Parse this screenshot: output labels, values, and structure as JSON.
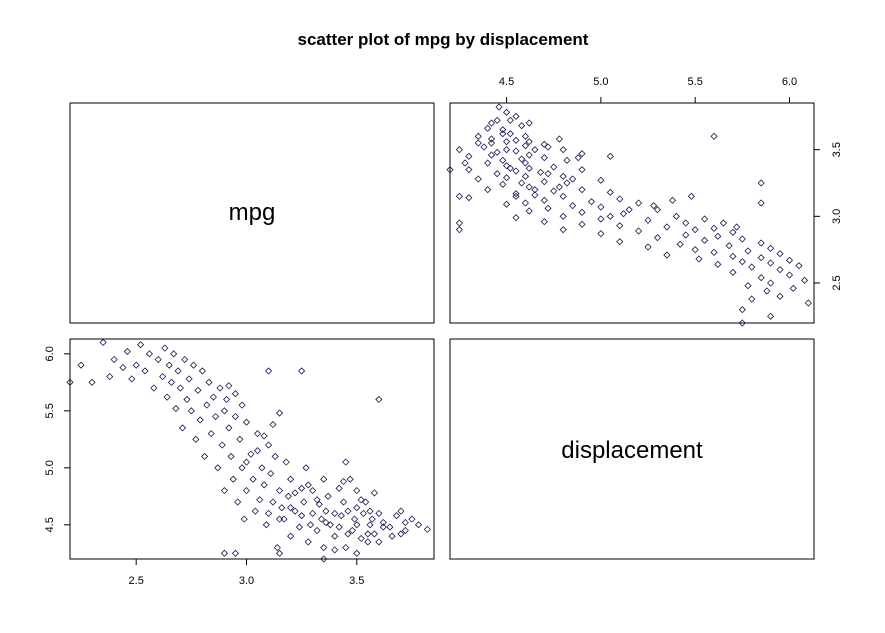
{
  "chart_data": {
    "type": "scatter",
    "title": "scatter plot of mpg by displacement",
    "variables": [
      "mpg",
      "displacement"
    ],
    "mpg_axis": {
      "range": [
        2.2,
        3.85
      ],
      "ticks": [
        2.5,
        3.0,
        3.5
      ],
      "tick_labels": [
        "2.5",
        "3.0",
        "3.5"
      ]
    },
    "displacement_axis": {
      "range": [
        4.2,
        6.13
      ],
      "ticks": [
        4.5,
        5.0,
        5.5,
        6.0
      ],
      "tick_labels": [
        "4.5",
        "5.0",
        "5.5",
        "6.0"
      ]
    },
    "point_color": "#1a1a50",
    "grid": false,
    "legend": "none",
    "points": [
      [
        3.82,
        4.46
      ],
      [
        3.78,
        4.5
      ],
      [
        3.75,
        4.55
      ],
      [
        3.72,
        4.45
      ],
      [
        3.7,
        4.62
      ],
      [
        3.68,
        4.58
      ],
      [
        3.66,
        4.4
      ],
      [
        3.65,
        4.48
      ],
      [
        3.62,
        4.52
      ],
      [
        3.6,
        4.6
      ],
      [
        3.6,
        4.35
      ],
      [
        3.58,
        4.78
      ],
      [
        3.57,
        4.55
      ],
      [
        3.56,
        4.5
      ],
      [
        3.55,
        4.42
      ],
      [
        3.54,
        4.7
      ],
      [
        3.53,
        4.6
      ],
      [
        3.52,
        4.38
      ],
      [
        3.5,
        4.5
      ],
      [
        3.5,
        4.8
      ],
      [
        3.5,
        4.65
      ],
      [
        3.49,
        4.55
      ],
      [
        3.48,
        4.45
      ],
      [
        3.47,
        4.9
      ],
      [
        3.46,
        4.62
      ],
      [
        3.45,
        4.3
      ],
      [
        3.45,
        5.05
      ],
      [
        3.44,
        4.7
      ],
      [
        3.43,
        4.58
      ],
      [
        3.42,
        4.48
      ],
      [
        3.42,
        4.82
      ],
      [
        3.4,
        4.6
      ],
      [
        3.4,
        4.4
      ],
      [
        3.38,
        4.5
      ],
      [
        3.37,
        4.75
      ],
      [
        3.36,
        4.62
      ],
      [
        3.35,
        4.9
      ],
      [
        3.35,
        4.3
      ],
      [
        3.34,
        4.55
      ],
      [
        3.33,
        4.68
      ],
      [
        3.32,
        4.45
      ],
      [
        3.3,
        4.6
      ],
      [
        3.3,
        4.8
      ],
      [
        3.29,
        4.5
      ],
      [
        3.28,
        4.35
      ],
      [
        3.27,
        5.0
      ],
      [
        3.26,
        4.7
      ],
      [
        3.25,
        4.58
      ],
      [
        3.25,
        4.82
      ],
      [
        3.24,
        4.48
      ],
      [
        3.22,
        4.62
      ],
      [
        3.2,
        4.9
      ],
      [
        3.2,
        4.4
      ],
      [
        3.19,
        4.75
      ],
      [
        3.18,
        5.05
      ],
      [
        3.17,
        4.55
      ],
      [
        3.16,
        4.65
      ],
      [
        3.15,
        4.8
      ],
      [
        3.14,
        4.3
      ],
      [
        3.13,
        5.1
      ],
      [
        3.12,
        4.7
      ],
      [
        3.11,
        4.95
      ],
      [
        3.1,
        4.6
      ],
      [
        3.1,
        5.2
      ],
      [
        3.09,
        4.5
      ],
      [
        3.08,
        4.85
      ],
      [
        3.07,
        5.0
      ],
      [
        3.06,
        4.72
      ],
      [
        3.05,
        5.3
      ],
      [
        3.04,
        4.62
      ],
      [
        3.03,
        4.9
      ],
      [
        3.02,
        5.12
      ],
      [
        3.0,
        4.8
      ],
      [
        3.0,
        5.4
      ],
      [
        2.99,
        4.55
      ],
      [
        2.98,
        5.0
      ],
      [
        2.97,
        5.25
      ],
      [
        2.96,
        4.7
      ],
      [
        2.95,
        5.45
      ],
      [
        2.94,
        4.9
      ],
      [
        2.93,
        5.1
      ],
      [
        2.92,
        5.35
      ],
      [
        2.91,
        5.6
      ],
      [
        2.9,
        4.8
      ],
      [
        2.9,
        5.5
      ],
      [
        2.89,
        5.2
      ],
      [
        2.88,
        5.7
      ],
      [
        2.87,
        5.0
      ],
      [
        2.86,
        5.45
      ],
      [
        2.85,
        5.62
      ],
      [
        2.84,
        5.3
      ],
      [
        2.83,
        5.75
      ],
      [
        2.82,
        5.55
      ],
      [
        2.81,
        5.1
      ],
      [
        2.8,
        5.85
      ],
      [
        2.79,
        5.42
      ],
      [
        2.78,
        5.68
      ],
      [
        2.77,
        5.25
      ],
      [
        2.76,
        5.9
      ],
      [
        2.75,
        5.5
      ],
      [
        2.74,
        5.78
      ],
      [
        2.73,
        5.6
      ],
      [
        2.72,
        5.95
      ],
      [
        2.71,
        5.35
      ],
      [
        2.7,
        5.7
      ],
      [
        2.69,
        5.85
      ],
      [
        2.68,
        5.52
      ],
      [
        2.67,
        6.0
      ],
      [
        2.66,
        5.75
      ],
      [
        2.65,
        5.9
      ],
      [
        2.64,
        5.62
      ],
      [
        2.63,
        6.05
      ],
      [
        2.62,
        5.8
      ],
      [
        2.6,
        5.95
      ],
      [
        2.58,
        5.7
      ],
      [
        2.56,
        6.0
      ],
      [
        2.54,
        5.85
      ],
      [
        2.52,
        6.08
      ],
      [
        2.5,
        5.9
      ],
      [
        2.48,
        5.78
      ],
      [
        2.46,
        6.02
      ],
      [
        2.44,
        5.88
      ],
      [
        2.4,
        5.95
      ],
      [
        2.38,
        5.8
      ],
      [
        2.35,
        6.1
      ],
      [
        2.3,
        5.75
      ],
      [
        2.25,
        5.9
      ],
      [
        2.2,
        5.75
      ],
      [
        3.6,
        5.6
      ],
      [
        3.25,
        5.85
      ],
      [
        3.1,
        5.85
      ],
      [
        2.9,
        4.25
      ],
      [
        2.95,
        4.25
      ],
      [
        3.15,
        4.25
      ],
      [
        3.35,
        4.2
      ],
      [
        3.4,
        4.28
      ],
      [
        3.5,
        4.25
      ],
      [
        3.55,
        4.35
      ],
      [
        3.7,
        4.42
      ],
      [
        3.72,
        4.52
      ],
      [
        3.15,
        4.55
      ],
      [
        3.2,
        4.65
      ],
      [
        3.22,
        4.78
      ],
      [
        3.28,
        4.85
      ],
      [
        3.32,
        4.72
      ],
      [
        3.36,
        4.52
      ],
      [
        3.44,
        4.88
      ],
      [
        3.46,
        4.42
      ],
      [
        3.52,
        4.72
      ],
      [
        3.56,
        4.62
      ],
      [
        3.58,
        4.42
      ],
      [
        3.62,
        4.48
      ],
      [
        3.0,
        5.05
      ],
      [
        3.05,
        5.15
      ],
      [
        3.08,
        5.28
      ],
      [
        3.12,
        5.38
      ],
      [
        3.15,
        5.48
      ],
      [
        2.98,
        5.55
      ],
      [
        2.95,
        5.65
      ],
      [
        2.92,
        5.72
      ]
    ]
  }
}
